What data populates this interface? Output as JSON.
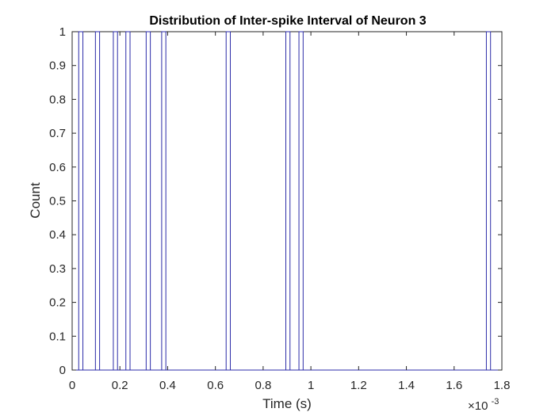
{
  "chart_data": {
    "type": "histogram",
    "title": "Distribution of Inter-spike Interval of Neuron 3",
    "xlabel": "Time (s)",
    "ylabel": "Count",
    "x_exponent_base": "×10",
    "x_exponent_power": "-3",
    "xlim": [
      0,
      0.0018
    ],
    "ylim": [
      0,
      1
    ],
    "xticks": [
      0,
      0.0002,
      0.0004,
      0.0006,
      0.0008,
      0.001,
      0.0012,
      0.0014,
      0.0016,
      0.0018
    ],
    "xtick_labels": [
      "0",
      "0.2",
      "0.4",
      "0.6",
      "0.8",
      "1",
      "1.2",
      "1.4",
      "1.6",
      "1.8"
    ],
    "yticks": [
      0,
      0.1,
      0.2,
      0.3,
      0.4,
      0.5,
      0.6,
      0.7,
      0.8,
      0.9,
      1
    ],
    "ytick_labels": [
      "0",
      "0.1",
      "0.2",
      "0.3",
      "0.4",
      "0.5",
      "0.6",
      "0.7",
      "0.8",
      "0.9",
      "1"
    ],
    "bin_width": 1.75e-05,
    "bins": [
      {
        "x_start": 2.75e-05,
        "count": 1
      },
      {
        "x_start": 9.75e-05,
        "count": 1
      },
      {
        "x_start": 0.0001725,
        "count": 1
      },
      {
        "x_start": 0.000225,
        "count": 1
      },
      {
        "x_start": 0.00031,
        "count": 1
      },
      {
        "x_start": 0.000375,
        "count": 1
      },
      {
        "x_start": 0.000645,
        "count": 1
      },
      {
        "x_start": 0.000895,
        "count": 1
      },
      {
        "x_start": 0.00095,
        "count": 1
      },
      {
        "x_start": 0.001735,
        "count": 1
      }
    ],
    "grid": false,
    "colors": {
      "bar_edge": "#2b2ba8",
      "bar_fill": "#ffffff",
      "axis": "#262626"
    }
  }
}
